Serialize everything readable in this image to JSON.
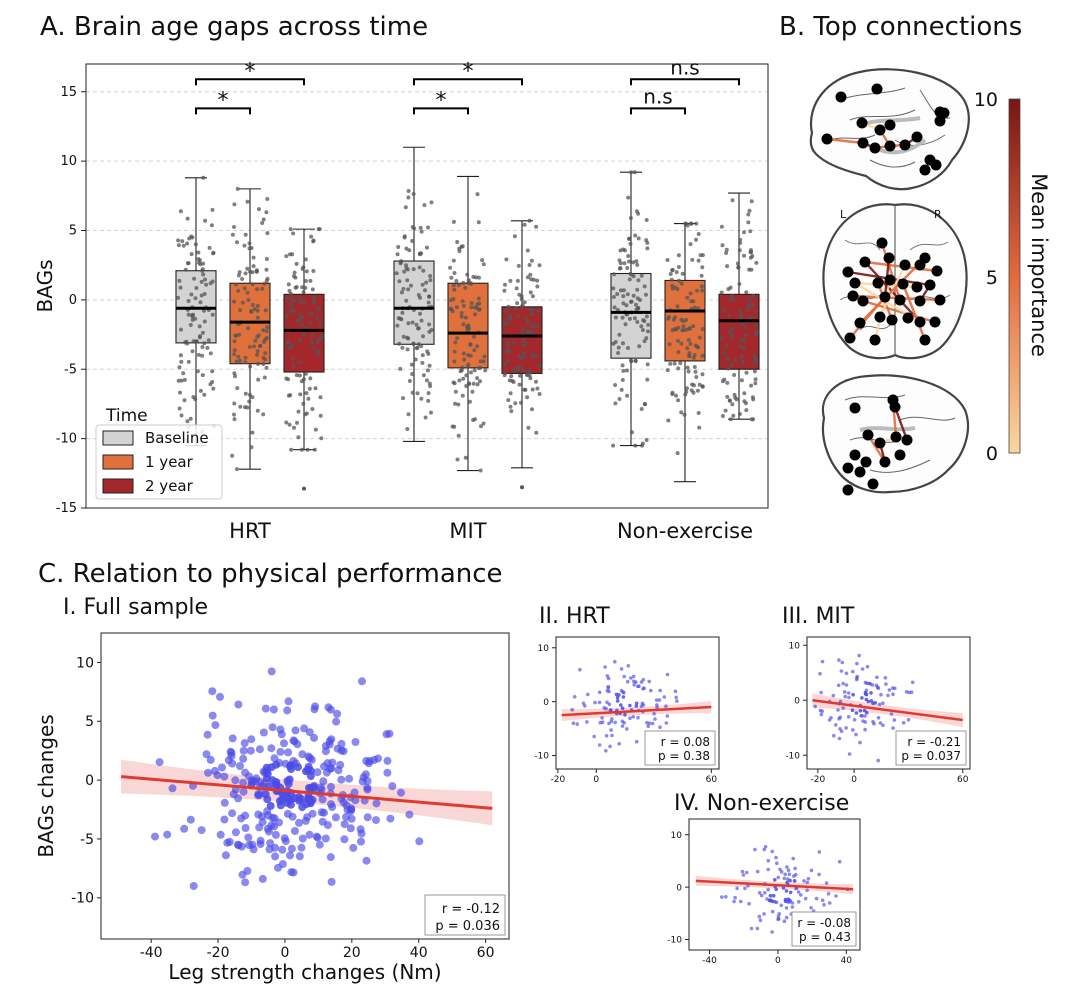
{
  "titles": {
    "panel_a": "A. Brain age gaps across time",
    "panel_b": "B. Top connections",
    "panel_c": "C. Relation to physical performance",
    "c1": "I. Full sample",
    "c2": "II. HRT",
    "c3": "III. MIT",
    "c4": "IV. Non-exercise"
  },
  "brain": {
    "colorbar_label": "Mean importance",
    "colorbar_ticks": [
      "10",
      "5",
      "0"
    ],
    "hemisphere_left": "L",
    "hemisphere_right": "R",
    "colors": {
      "low": "#f9d7a0",
      "mid": "#e36a3e",
      "high": "#7a1414"
    }
  },
  "chart_data": [
    {
      "id": "A",
      "type": "box",
      "ylabel": "BAGs",
      "ylim": [
        -15,
        17
      ],
      "yticks": [
        -15,
        -10,
        -5,
        0,
        5,
        10,
        15
      ],
      "grid": "horizontal dashed",
      "groups": [
        "HRT",
        "MIT",
        "Non-exercise"
      ],
      "legend": {
        "title": "Time",
        "position": "bottom-left",
        "entries": [
          {
            "name": "Baseline",
            "color": "#d3d3d3"
          },
          {
            "name": "1 year",
            "color": "#e0713d"
          },
          {
            "name": "2 year",
            "color": "#a4272b"
          }
        ]
      },
      "boxes": [
        {
          "group": "HRT",
          "time": "Baseline",
          "whisker_low": -10.5,
          "q1": -3.1,
          "median": -0.6,
          "q3": 2.1,
          "whisker_high": 8.8
        },
        {
          "group": "HRT",
          "time": "1 year",
          "whisker_low": -12.2,
          "q1": -4.6,
          "median": -1.6,
          "q3": 1.2,
          "whisker_high": 8.0
        },
        {
          "group": "HRT",
          "time": "2 year",
          "whisker_low": -10.8,
          "q1": -5.2,
          "median": -2.2,
          "q3": 0.4,
          "whisker_high": 5.1
        },
        {
          "group": "MIT",
          "time": "Baseline",
          "whisker_low": -10.2,
          "q1": -3.2,
          "median": -0.6,
          "q3": 2.8,
          "whisker_high": 11.0
        },
        {
          "group": "MIT",
          "time": "1 year",
          "whisker_low": -12.3,
          "q1": -4.9,
          "median": -2.4,
          "q3": 1.2,
          "whisker_high": 8.9
        },
        {
          "group": "MIT",
          "time": "2 year",
          "whisker_low": -12.1,
          "q1": -5.3,
          "median": -2.6,
          "q3": -0.5,
          "whisker_high": 5.7
        },
        {
          "group": "Non-exercise",
          "time": "Baseline",
          "whisker_low": -10.5,
          "q1": -4.2,
          "median": -0.9,
          "q3": 1.9,
          "whisker_high": 9.2
        },
        {
          "group": "Non-exercise",
          "time": "1 year",
          "whisker_low": -13.1,
          "q1": -4.4,
          "median": -0.8,
          "q3": 1.4,
          "whisker_high": 5.5
        },
        {
          "group": "Non-exercise",
          "time": "2 year",
          "whisker_low": -8.6,
          "q1": -5.0,
          "median": -1.5,
          "q3": 0.4,
          "whisker_high": 7.7
        }
      ],
      "annotations": [
        {
          "group": "HRT",
          "from": "Baseline",
          "to": "1 year",
          "label": "*"
        },
        {
          "group": "HRT",
          "from": "Baseline",
          "to": "2 year",
          "label": "*"
        },
        {
          "group": "MIT",
          "from": "Baseline",
          "to": "1 year",
          "label": "*"
        },
        {
          "group": "MIT",
          "from": "Baseline",
          "to": "2 year",
          "label": "*"
        },
        {
          "group": "Non-exercise",
          "from": "Baseline",
          "to": "1 year",
          "label": "n.s"
        },
        {
          "group": "Non-exercise",
          "from": "Baseline",
          "to": "2 year",
          "label": "n.s"
        }
      ]
    },
    {
      "id": "C-I",
      "type": "scatter",
      "xlabel": "Leg strength changes (Nm)",
      "ylabel": "BAGs changes",
      "xlim": [
        -55,
        67
      ],
      "ylim": [
        -13.5,
        12.5
      ],
      "xticks": [
        -40,
        -20,
        0,
        20,
        40,
        60
      ],
      "yticks": [
        -10,
        -5,
        0,
        5,
        10
      ],
      "fit": {
        "x": [
          -49,
          62
        ],
        "y": [
          0.3,
          -2.4
        ]
      },
      "stats": [
        "r = -0.12",
        "p = 0.036"
      ],
      "point_color": "#4a4ae6",
      "line_color": "#e03a2f"
    },
    {
      "id": "C-II",
      "type": "scatter",
      "xlim": [
        -21,
        64
      ],
      "ylim": [
        -12.5,
        12
      ],
      "xticks": [
        -20,
        0,
        60
      ],
      "yticks": [
        -10,
        0,
        10
      ],
      "fit": {
        "x": [
          -18,
          60
        ],
        "y": [
          -2.5,
          -1.0
        ]
      },
      "stats": [
        "r = 0.08",
        "p = 0.38"
      ],
      "point_color": "#4a4ae6",
      "line_color": "#e03a2f"
    },
    {
      "id": "C-III",
      "type": "scatter",
      "xlim": [
        -26,
        64
      ],
      "ylim": [
        -12.5,
        11.5
      ],
      "xticks": [
        -20,
        0,
        60
      ],
      "yticks": [
        -10,
        0,
        10
      ],
      "fit": {
        "x": [
          -23,
          60
        ],
        "y": [
          0.0,
          -3.6
        ]
      },
      "stats": [
        "r = -0.21",
        "p = 0.037"
      ],
      "point_color": "#4a4ae6",
      "line_color": "#e03a2f"
    },
    {
      "id": "C-IV",
      "type": "scatter",
      "xlim": [
        -52,
        48
      ],
      "ylim": [
        -12,
        13
      ],
      "xticks": [
        -40,
        0,
        40
      ],
      "yticks": [
        -10,
        0,
        10
      ],
      "fit": {
        "x": [
          -48,
          44
        ],
        "y": [
          1.2,
          -0.4
        ]
      },
      "stats": [
        "r = -0.08",
        "p = 0.43"
      ],
      "point_color": "#4a4ae6",
      "line_color": "#e03a2f"
    }
  ]
}
